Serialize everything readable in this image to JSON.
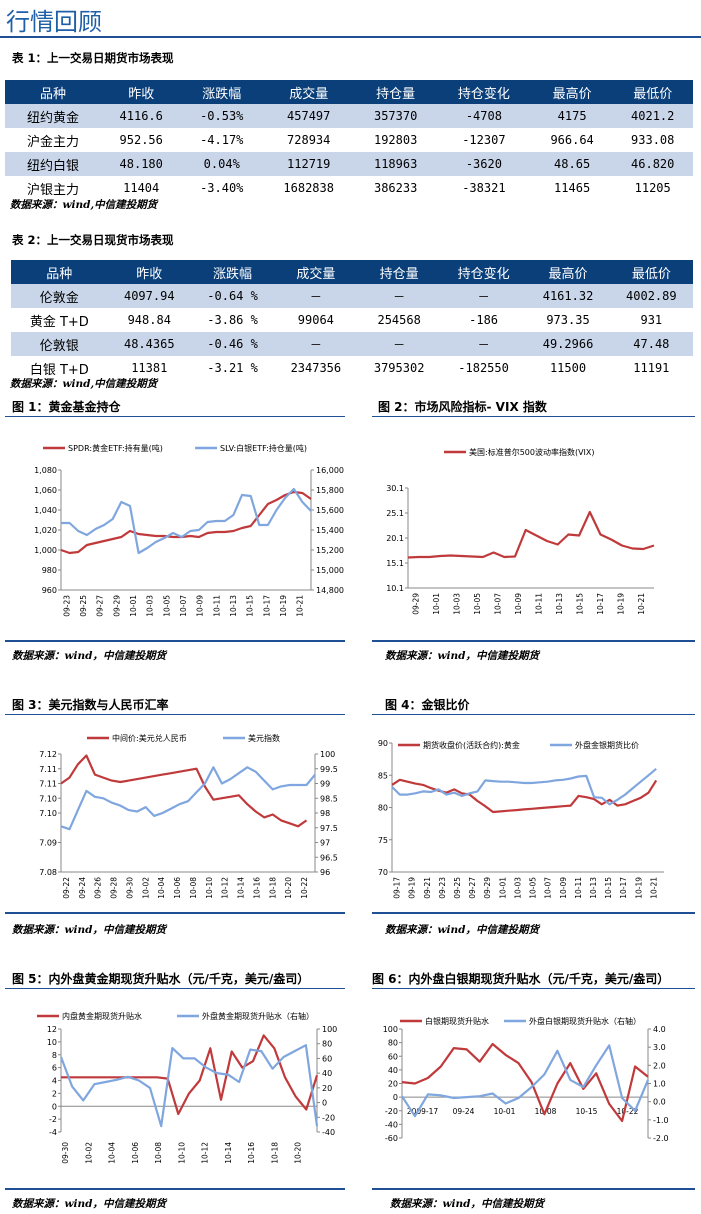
{
  "page_title": "行情回顾",
  "table1": {
    "caption": "表 1：上一交易日期货市场表现",
    "headers": [
      "品种",
      "昨收",
      "涨跌幅",
      "成交量",
      "持仓量",
      "持仓变化",
      "最高价",
      "最低价"
    ],
    "rows": [
      [
        "纽约黄金",
        "4116.6",
        "-0.53%",
        "457497",
        "357370",
        "-4708",
        "4175",
        "4021.2"
      ],
      [
        "沪金主力",
        "952.56",
        "-4.17%",
        "728934",
        "192803",
        "-12307",
        "966.64",
        "933.08"
      ],
      [
        "纽约白银",
        "48.180",
        "0.04%",
        "112719",
        "118963",
        "-3620",
        "48.65",
        "46.820"
      ],
      [
        "沪银主力",
        "11404",
        "-3.40%",
        "1682838",
        "386233",
        "-38321",
        "11465",
        "11205"
      ]
    ],
    "source": "数据来源：wind,中信建投期货"
  },
  "table2": {
    "caption": "表 2：上一交易日现货市场表现",
    "headers": [
      "品种",
      "昨收",
      "涨跌幅",
      "成交量",
      "持仓量",
      "持仓变化",
      "最高价",
      "最低价"
    ],
    "rows": [
      [
        "伦敦金",
        "4097.94",
        "-0.64 %",
        "－",
        "－",
        "－",
        "4161.32",
        "4002.89"
      ],
      [
        "黄金 T+D",
        "948.84",
        "-3.86 %",
        "99064",
        "254568",
        "-186",
        "973.35",
        "931"
      ],
      [
        "伦敦银",
        "48.4365",
        "-0.46 %",
        "－",
        "－",
        "－",
        "49.2966",
        "47.48"
      ],
      [
        "白银 T+D",
        "11381",
        "-3.21 %",
        "2347356",
        "3795302",
        "-182550",
        "11500",
        "11191"
      ]
    ],
    "source": "数据来源：wind,中信建投期货"
  },
  "figures": {
    "fig1_caption": "图 1：黄金基金持仓",
    "fig2_caption": "图 2：市场风险指标- VIX 指数",
    "fig3_caption": "图 3：美元指数与人民币汇率",
    "fig4_caption": "图 4：金银比价",
    "fig5_caption": "图 5：内外盘黄金期现货升贴水（元/千克，美元/盎司）",
    "fig6_caption": "图 6：内外盘白银期现货升贴水（元/千克，美元/盎司）",
    "source": "数据来源：wind，中信建投期货"
  },
  "colors": {
    "red": "#c0393b",
    "blue": "#7fa6de",
    "navy": "#0a3f7a"
  },
  "chart_data": [
    {
      "id": "fig1",
      "type": "line",
      "x": [
        "09-23",
        "09-24",
        "09-25",
        "09-26",
        "09-27",
        "09-28",
        "09-29",
        "09-30",
        "10-01",
        "10-02",
        "10-03",
        "10-04",
        "10-05",
        "10-06",
        "10-07",
        "10-08",
        "10-09",
        "10-10",
        "10-11",
        "10-12",
        "10-13",
        "10-14",
        "10-15",
        "10-16",
        "10-17",
        "10-18",
        "10-19",
        "10-20",
        "10-21",
        "10-22"
      ],
      "xticks": [
        "09-23",
        "09-25",
        "09-27",
        "09-29",
        "10-01",
        "10-03",
        "10-05",
        "10-07",
        "10-09",
        "10-11",
        "10-13",
        "10-15",
        "10-17",
        "10-19",
        "10-21"
      ],
      "ylim": [
        960,
        1080
      ],
      "yticks": [
        960,
        980,
        1000,
        1020,
        1040,
        1060,
        1080
      ],
      "y2lim": [
        14800,
        16000
      ],
      "y2ticks": [
        14800,
        15000,
        15200,
        15400,
        15600,
        15800,
        16000
      ],
      "series": [
        {
          "name": "SPDR:黄金ETF:持有量(吨)",
          "axis": "left",
          "color": "#c0393b",
          "values": [
            1000,
            997,
            998,
            1005,
            1007,
            1009,
            1011,
            1013,
            1019,
            1016,
            1015,
            1014,
            1014,
            1013,
            1013,
            1014,
            1013,
            1017,
            1018,
            1018,
            1019,
            1022,
            1024,
            1035,
            1046,
            1050,
            1055,
            1058,
            1057,
            1051
          ]
        },
        {
          "name": "SLV:白银ETF:持仓量(吨)",
          "axis": "right",
          "color": "#7fa6de",
          "values": [
            15470,
            15470,
            15390,
            15350,
            15410,
            15450,
            15510,
            15680,
            15640,
            15170,
            15220,
            15280,
            15320,
            15370,
            15330,
            15390,
            15400,
            15480,
            15490,
            15490,
            15550,
            15750,
            15740,
            15450,
            15450,
            15600,
            15720,
            15810,
            15680,
            15590
          ]
        }
      ]
    },
    {
      "id": "fig2",
      "type": "line",
      "x": [
        "09-29",
        "09-30",
        "10-01",
        "10-02",
        "10-03",
        "10-04",
        "10-05",
        "10-06",
        "10-07",
        "10-08",
        "10-09",
        "10-10",
        "10-11",
        "10-12",
        "10-13",
        "10-14",
        "10-15",
        "10-16",
        "10-17",
        "10-18",
        "10-19",
        "10-20",
        "10-21",
        "10-22"
      ],
      "xticks": [
        "09-29",
        "10-01",
        "10-03",
        "10-05",
        "10-07",
        "10-09",
        "10-11",
        "10-13",
        "10-15",
        "10-17",
        "10-19",
        "10-21"
      ],
      "ylim": [
        10.1,
        30.1
      ],
      "yticks": [
        10.1,
        15.1,
        20.1,
        25.1,
        30.1
      ],
      "series": [
        {
          "name": "美国:标准普尔500波动率指数(VIX)",
          "color": "#c0393b",
          "values": [
            16.2,
            16.3,
            16.3,
            16.5,
            16.6,
            16.5,
            16.4,
            16.3,
            17.2,
            16.3,
            16.4,
            21.7,
            20.6,
            19.5,
            18.8,
            20.8,
            20.6,
            25.3,
            20.8,
            19.8,
            18.6,
            18.0,
            17.9,
            18.6
          ]
        }
      ]
    },
    {
      "id": "fig3",
      "type": "line",
      "x": [
        "09-22",
        "09-23",
        "09-24",
        "09-25",
        "09-26",
        "09-27",
        "09-28",
        "09-29",
        "09-30",
        "10-01",
        "10-02",
        "10-03",
        "10-04",
        "10-05",
        "10-06",
        "10-07",
        "10-08",
        "10-09",
        "10-10",
        "10-11",
        "10-12",
        "10-13",
        "10-14",
        "10-15",
        "10-16",
        "10-17",
        "10-18",
        "10-19",
        "10-20",
        "10-21",
        "10-22"
      ],
      "xticks": [
        "09-22",
        "09-24",
        "09-26",
        "09-28",
        "09-30",
        "10-02",
        "10-04",
        "10-06",
        "10-08",
        "10-10",
        "10-12",
        "10-14",
        "10-16",
        "10-18",
        "10-20",
        "10-22"
      ],
      "ylim": [
        7.08,
        7.12
      ],
      "yticks": [
        7.08,
        7.09,
        7.1,
        7.105,
        7.11,
        7.115,
        7.12
      ],
      "ytick_labels": [
        "7.08",
        "7.09",
        "7.10",
        "7.10",
        "7.11",
        "7.11",
        "7.12"
      ],
      "y2lim": [
        96,
        100
      ],
      "y2ticks": [
        96,
        96.5,
        97,
        97.5,
        98,
        98.5,
        99,
        99.5,
        100
      ],
      "series": [
        {
          "name": "中间价:美元兑人民币",
          "axis": "left",
          "color": "#c0393b",
          "values": [
            7.11,
            7.112,
            7.1165,
            7.1195,
            7.113,
            7.112,
            7.111,
            7.1105,
            7.111,
            7.1115,
            7.112,
            7.1125,
            7.113,
            7.1135,
            7.114,
            7.1145,
            7.115,
            7.109,
            7.1045,
            7.105,
            7.1055,
            7.106,
            7.103,
            7.1005,
            7.0985,
            7.0995,
            7.0975,
            7.0965,
            7.0955,
            7.0975,
            null
          ]
        },
        {
          "name": "美元指数",
          "axis": "right",
          "color": "#7fa6de",
          "values": [
            97.55,
            97.45,
            98.1,
            98.75,
            98.55,
            98.5,
            98.35,
            98.25,
            98.1,
            98.05,
            98.2,
            97.9,
            98.0,
            98.15,
            98.3,
            98.4,
            98.7,
            99.0,
            99.55,
            99.0,
            99.15,
            99.35,
            99.55,
            99.4,
            99.1,
            98.8,
            98.9,
            98.95,
            98.95,
            98.95,
            99.3
          ]
        }
      ]
    },
    {
      "id": "fig4",
      "type": "line",
      "x": [
        "09-17",
        "09-18",
        "09-19",
        "09-20",
        "09-21",
        "09-22",
        "09-23",
        "09-24",
        "09-25",
        "09-26",
        "09-27",
        "09-28",
        "09-29",
        "09-30",
        "10-01",
        "10-02",
        "10-03",
        "10-04",
        "10-05",
        "10-06",
        "10-07",
        "10-08",
        "10-09",
        "10-10",
        "10-11",
        "10-12",
        "10-13",
        "10-14",
        "10-15",
        "10-16",
        "10-17",
        "10-18",
        "10-19",
        "10-20",
        "10-21",
        "10-22"
      ],
      "xticks": [
        "09-17",
        "09-19",
        "09-21",
        "09-23",
        "09-25",
        "09-27",
        "09-29",
        "10-01",
        "10-03",
        "10-05",
        "10-07",
        "10-09",
        "10-11",
        "10-13",
        "10-15",
        "10-17",
        "10-19",
        "10-21"
      ],
      "ylim": [
        70,
        90
      ],
      "yticks": [
        70,
        75,
        80,
        85,
        90
      ],
      "series": [
        {
          "name": "期货收盘价(活跃合约):黄金",
          "color": "#c0393b",
          "values": [
            83.5,
            84.3,
            84.0,
            83.7,
            83.5,
            83.0,
            82.6,
            82.3,
            82.8,
            82.2,
            82.0,
            81.0,
            80.2,
            79.3,
            79.4,
            79.5,
            79.6,
            79.7,
            79.8,
            79.9,
            80.0,
            80.1,
            80.2,
            80.3,
            81.8,
            81.6,
            81.3,
            80.5,
            81.2,
            80.3,
            80.5,
            81.0,
            81.5,
            82.3,
            84.2,
            null
          ]
        },
        {
          "name": "外盘金银期货比价",
          "color": "#7fa6de",
          "values": [
            83.2,
            82.0,
            82.0,
            82.2,
            82.5,
            82.4,
            82.8,
            82.0,
            82.3,
            81.8,
            82.2,
            82.5,
            84.2,
            84.1,
            84.0,
            84.0,
            83.9,
            83.8,
            83.8,
            83.9,
            84.0,
            84.2,
            84.3,
            84.5,
            84.8,
            84.9,
            81.6,
            81.5,
            80.5,
            81.2,
            82.0,
            83.0,
            84.0,
            85.0,
            86.0,
            null
          ]
        }
      ]
    },
    {
      "id": "fig5",
      "type": "line",
      "xticks": [
        "09-30",
        "10-02",
        "10-04",
        "10-06",
        "10-08",
        "10-10",
        "10-12",
        "10-14",
        "10-16",
        "10-18",
        "10-20"
      ],
      "ylim": [
        -4,
        12
      ],
      "yticks": [
        -4,
        -2,
        0,
        2,
        4,
        6,
        8,
        10,
        12
      ],
      "y2lim": [
        -40,
        100
      ],
      "y2ticks": [
        -40,
        -20,
        0,
        20,
        40,
        60,
        80,
        100
      ],
      "series": [
        {
          "name": "内盘黄金期现货升贴水",
          "axis": "left",
          "color": "#c0393b",
          "values": [
            4.5,
            4.5,
            4.5,
            4.5,
            4.5,
            4.5,
            4.5,
            4.5,
            4.5,
            4.5,
            4.3,
            -1.2,
            2.0,
            4.0,
            9.0,
            1.0,
            8.5,
            6.0,
            7.0,
            11.0,
            9.0,
            4.5,
            1.5,
            -0.5,
            4.8
          ]
        },
        {
          "name": "外盘黄金期现货升贴水（右轴）",
          "axis": "right",
          "color": "#7fa6de",
          "values": [
            62,
            22,
            3,
            25,
            28,
            31,
            35,
            30,
            20,
            -32,
            74,
            60,
            60,
            48,
            40,
            38,
            28,
            72,
            70,
            46,
            62,
            70,
            78,
            -32
          ]
        }
      ]
    },
    {
      "id": "fig6",
      "type": "line",
      "xticks": [
        "2009-17",
        "09-24",
        "10-01",
        "10-08",
        "10-15",
        "10-22"
      ],
      "ylim": [
        -60,
        100
      ],
      "yticks": [
        -60,
        -40,
        -20,
        0,
        20,
        40,
        60,
        80,
        100
      ],
      "y2lim": [
        -2,
        4
      ],
      "y2ticks": [
        -2,
        -1,
        0,
        1,
        2,
        3,
        4
      ],
      "series": [
        {
          "name": "白银期现货升贴水",
          "axis": "left",
          "color": "#c0393b",
          "values": [
            22,
            20,
            28,
            45,
            72,
            70,
            52,
            78,
            62,
            50,
            22,
            -25,
            20,
            50,
            12,
            35,
            -10,
            -35,
            45,
            30
          ]
        },
        {
          "name": "外盘白银期现货升贴水（右轴）",
          "axis": "right",
          "color": "#7fa6de",
          "values": [
            0.3,
            -0.8,
            0.4,
            0.35,
            0.2,
            0.25,
            0.3,
            0.45,
            -0.1,
            0.2,
            0.8,
            1.5,
            2.8,
            1.2,
            0.8,
            2.0,
            3.1,
            0.2,
            -0.5,
            1.2
          ]
        }
      ]
    }
  ]
}
